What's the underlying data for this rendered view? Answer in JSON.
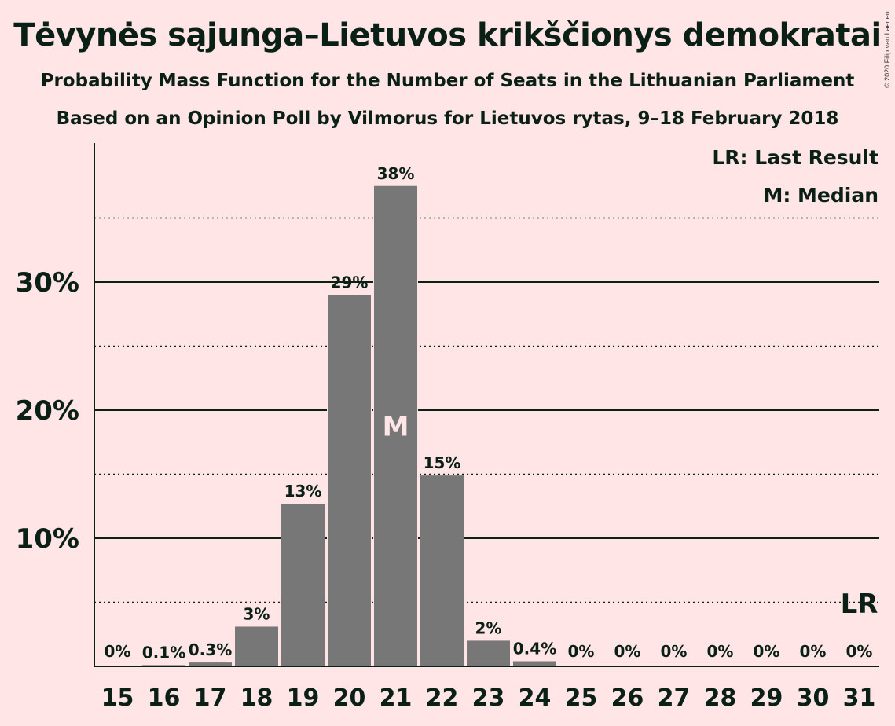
{
  "header": {
    "title": "Tėvynės sąjunga–Lietuvos krikščionys demokratai",
    "subtitle1": "Probability Mass Function for the Number of Seats in the Lithuanian Parliament",
    "subtitle2": "Based on an Opinion Poll by Vilmorus for Lietuvos rytas, 9–18 February 2018",
    "copyright": "© 2020 Filip van Laenen"
  },
  "legend": {
    "last_result": "LR: Last Result",
    "median": "M: Median"
  },
  "colors": {
    "background": "#FFE5E5",
    "bar": "#777777",
    "text": "#0A1F16"
  },
  "chart_data": {
    "type": "bar",
    "categories": [
      "15",
      "16",
      "17",
      "18",
      "19",
      "20",
      "21",
      "22",
      "23",
      "24",
      "25",
      "26",
      "27",
      "28",
      "29",
      "30",
      "31"
    ],
    "values": [
      0,
      0.1,
      0.3,
      3.1,
      12.7,
      29.0,
      37.5,
      14.9,
      2.0,
      0.4,
      0,
      0,
      0,
      0,
      0,
      0,
      0
    ],
    "data_labels": [
      "0%",
      "0.1%",
      "0.3%",
      "3%",
      "13%",
      "29%",
      "38%",
      "15%",
      "2%",
      "0.4%",
      "0%",
      "0%",
      "0%",
      "0%",
      "0%",
      "0%",
      "0%"
    ],
    "ylim": [
      0,
      40
    ],
    "yticks": [
      {
        "value": 10,
        "label": "10%"
      },
      {
        "value": 20,
        "label": "20%"
      },
      {
        "value": 30,
        "label": "30%"
      }
    ],
    "gridlines_solid": [
      10,
      20,
      30
    ],
    "gridlines_dotted": [
      5,
      15,
      25,
      35
    ],
    "median_category": "21",
    "median_marker": "M",
    "last_result_category": "31",
    "last_result_marker": "LR"
  }
}
